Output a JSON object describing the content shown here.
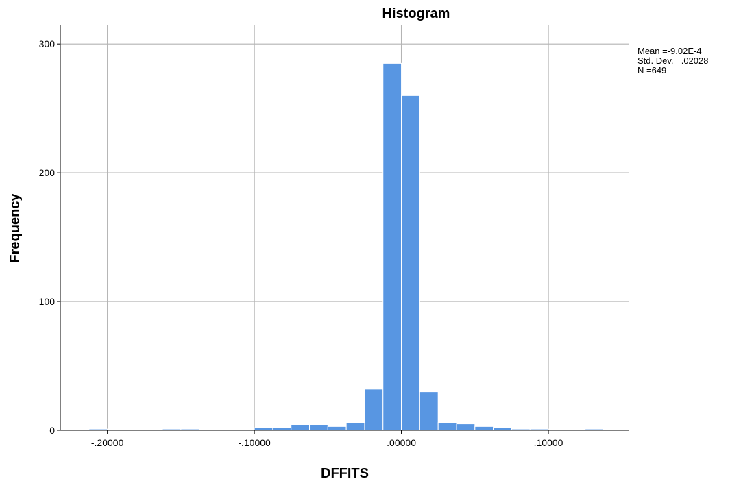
{
  "chart_data": {
    "type": "bar",
    "title": "Histogram",
    "xlabel": "DFFITS",
    "ylabel": "Frequency",
    "xlim": [
      -0.232,
      0.155
    ],
    "ylim": [
      0,
      315
    ],
    "grid": true,
    "x_ticks": [
      {
        "value": -0.2,
        "label": "-.20000"
      },
      {
        "value": -0.1,
        "label": "-.10000"
      },
      {
        "value": 0.0,
        "label": ".00000"
      },
      {
        "value": 0.1,
        "label": ".10000"
      }
    ],
    "y_ticks": [
      {
        "value": 0,
        "label": "0"
      },
      {
        "value": 100,
        "label": "100"
      },
      {
        "value": 200,
        "label": "200"
      },
      {
        "value": 300,
        "label": "300"
      }
    ],
    "bins": [
      {
        "x0": -0.2125,
        "x1": -0.2,
        "count": 1
      },
      {
        "x0": -0.2,
        "x1": -0.1875,
        "count": 0
      },
      {
        "x0": -0.1875,
        "x1": -0.175,
        "count": 0
      },
      {
        "x0": -0.175,
        "x1": -0.1625,
        "count": 0
      },
      {
        "x0": -0.1625,
        "x1": -0.15,
        "count": 1
      },
      {
        "x0": -0.15,
        "x1": -0.1375,
        "count": 1
      },
      {
        "x0": -0.1375,
        "x1": -0.125,
        "count": 0
      },
      {
        "x0": -0.125,
        "x1": -0.1125,
        "count": 0
      },
      {
        "x0": -0.1125,
        "x1": -0.1,
        "count": 0
      },
      {
        "x0": -0.1,
        "x1": -0.0875,
        "count": 2
      },
      {
        "x0": -0.0875,
        "x1": -0.075,
        "count": 2
      },
      {
        "x0": -0.075,
        "x1": -0.0625,
        "count": 4
      },
      {
        "x0": -0.0625,
        "x1": -0.05,
        "count": 4
      },
      {
        "x0": -0.05,
        "x1": -0.0375,
        "count": 3
      },
      {
        "x0": -0.0375,
        "x1": -0.025,
        "count": 6
      },
      {
        "x0": -0.025,
        "x1": -0.0125,
        "count": 32
      },
      {
        "x0": -0.0125,
        "x1": 0.0,
        "count": 285
      },
      {
        "x0": 0.0,
        "x1": 0.0125,
        "count": 260
      },
      {
        "x0": 0.0125,
        "x1": 0.025,
        "count": 30
      },
      {
        "x0": 0.025,
        "x1": 0.0375,
        "count": 6
      },
      {
        "x0": 0.0375,
        "x1": 0.05,
        "count": 5
      },
      {
        "x0": 0.05,
        "x1": 0.0625,
        "count": 3
      },
      {
        "x0": 0.0625,
        "x1": 0.075,
        "count": 2
      },
      {
        "x0": 0.075,
        "x1": 0.0875,
        "count": 1
      },
      {
        "x0": 0.0875,
        "x1": 0.1,
        "count": 1
      },
      {
        "x0": 0.1,
        "x1": 0.1125,
        "count": 0
      },
      {
        "x0": 0.1125,
        "x1": 0.125,
        "count": 0
      },
      {
        "x0": 0.125,
        "x1": 0.1375,
        "count": 1
      }
    ],
    "bar_color": "#5896e2",
    "bar_edge_color": "#ffffff",
    "stats": {
      "mean": "Mean =-9.02E-4",
      "std_dev": "Std. Dev. =.02028",
      "n": "N =649"
    }
  }
}
